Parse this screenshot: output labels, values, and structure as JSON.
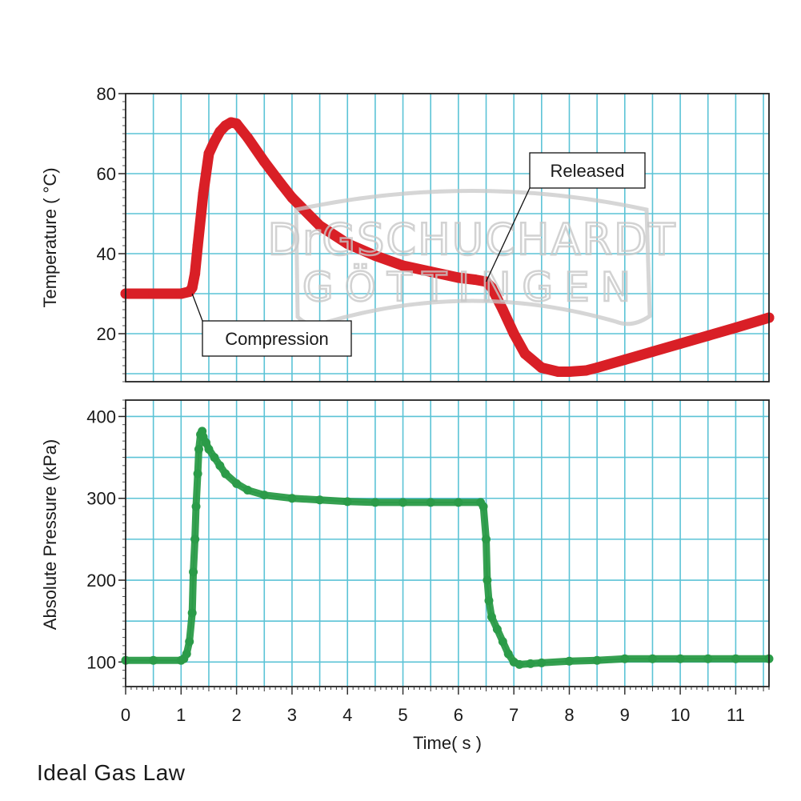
{
  "caption": "Ideal Gas Law",
  "watermark": {
    "line1": "DrGSCHUCHARDT",
    "line2": "GÖTTINGEN"
  },
  "colors": {
    "temperature": "#d91f26",
    "pressure": "#2b9b48",
    "grid": "#5bc3d6",
    "frame": "#222222",
    "watermark": "#c8c8c8"
  },
  "chart_data": [
    {
      "type": "line",
      "ylabel": "Temperature ( °C)",
      "ylim": [
        8,
        80
      ],
      "xlim": [
        0,
        11.6
      ],
      "yticks": [
        20,
        40,
        60,
        80
      ],
      "grid": true,
      "series": [
        {
          "x": [
            0,
            0.5,
            1.0,
            1.15,
            1.2,
            1.25,
            1.3,
            1.4,
            1.5,
            1.6,
            1.7,
            1.8,
            1.9,
            2.0,
            2.2,
            2.5,
            2.8,
            3.0,
            3.5,
            4.0,
            4.5,
            5.0,
            5.5,
            6.0,
            6.3,
            6.5,
            6.6,
            6.8,
            7.0,
            7.2,
            7.5,
            7.8,
            8.0,
            8.3,
            8.5,
            9.0,
            9.5,
            10.0,
            10.5,
            11.0,
            11.6
          ],
          "y": [
            30,
            30,
            30,
            30.5,
            31.5,
            35,
            42,
            55,
            65,
            68,
            70.5,
            72,
            72.8,
            72.5,
            69,
            63,
            57.5,
            54,
            47,
            42.5,
            39.5,
            37,
            35.5,
            34,
            33.5,
            33,
            31.5,
            26,
            20,
            15,
            11.5,
            10.5,
            10.5,
            10.8,
            11.5,
            13.5,
            15.5,
            17.5,
            19.5,
            21.5,
            24
          ]
        }
      ],
      "annotations": [
        {
          "text": "Compression",
          "x": 1.2,
          "y": 30
        },
        {
          "text": "Released",
          "x": 6.5,
          "y": 33
        }
      ]
    },
    {
      "type": "scatter",
      "xlabel": "Time( s )",
      "ylabel": "Absolute Pressure (kPa)",
      "ylim": [
        70,
        420
      ],
      "xlim": [
        0,
        11.6
      ],
      "xticks": [
        0,
        1,
        2,
        3,
        4,
        5,
        6,
        7,
        8,
        9,
        10,
        11
      ],
      "yticks": [
        100,
        200,
        300,
        400
      ],
      "grid": true,
      "series": [
        {
          "x": [
            0,
            0.5,
            1.0,
            1.05,
            1.1,
            1.15,
            1.2,
            1.22,
            1.25,
            1.27,
            1.3,
            1.32,
            1.35,
            1.38,
            1.4,
            1.45,
            1.5,
            1.6,
            1.7,
            1.8,
            2.0,
            2.2,
            2.5,
            3.0,
            3.5,
            4.0,
            4.5,
            5.0,
            5.5,
            6.0,
            6.4,
            6.45,
            6.5,
            6.52,
            6.55,
            6.6,
            6.7,
            6.8,
            6.9,
            7.0,
            7.1,
            7.3,
            7.5,
            8.0,
            8.5,
            9.0,
            9.5,
            10.0,
            10.5,
            11.0,
            11.6
          ],
          "y": [
            102,
            102,
            102,
            104,
            110,
            125,
            160,
            210,
            250,
            290,
            330,
            360,
            378,
            382,
            375,
            368,
            360,
            350,
            340,
            330,
            318,
            310,
            304,
            300,
            298,
            296,
            295,
            295,
            295,
            295,
            295,
            290,
            250,
            200,
            175,
            155,
            140,
            125,
            110,
            100,
            97,
            98,
            99,
            101,
            102,
            104,
            104,
            104,
            104,
            104,
            104
          ]
        }
      ]
    }
  ]
}
